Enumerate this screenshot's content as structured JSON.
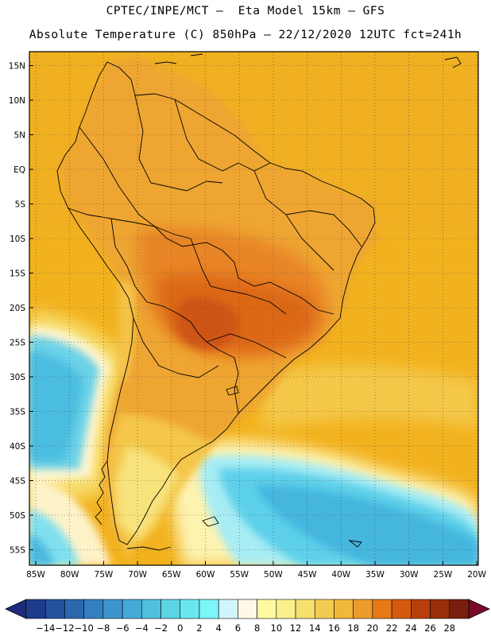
{
  "title_line1": "CPTEC/INPE/MCT –  Eta Model 15km – GFS",
  "title_line2": "Absolute Temperature (C) 850hPa – 22/12/2020 12UTC fct=241h",
  "lat_labels": [
    "15N",
    "10N",
    "5N",
    "EQ",
    "5S",
    "10S",
    "15S",
    "20S",
    "25S",
    "30S",
    "35S",
    "40S",
    "45S",
    "50S",
    "55S"
  ],
  "lon_labels": [
    "85W",
    "80W",
    "75W",
    "70W",
    "65W",
    "60W",
    "55W",
    "50W",
    "45W",
    "40W",
    "35W",
    "30W",
    "25W",
    "20W"
  ],
  "map": {
    "region": "South America",
    "lon_range": [
      -86,
      -19
    ],
    "lat_range": [
      -58,
      17
    ],
    "grid": "dotted",
    "field": "temperature_850hPa"
  },
  "colorbar": {
    "labels": [
      "-14",
      "-12",
      "-10",
      "-8",
      "-6",
      "-4",
      "-2",
      "0",
      "2",
      "4",
      "6",
      "8",
      "10",
      "12",
      "14",
      "16",
      "18",
      "20",
      "22",
      "24",
      "26",
      "28"
    ],
    "colors": [
      "#1e3c8c",
      "#23529f",
      "#2a68b0",
      "#3480c0",
      "#3c95cc",
      "#45aad6",
      "#4fc0de",
      "#5dd4e6",
      "#6ce6ee",
      "#7cf6f8",
      "#d2f4fc",
      "#fff8e6",
      "#fdfaa0",
      "#faf08c",
      "#f6e070",
      "#f2cc52",
      "#f0b83a",
      "#ec9c2c",
      "#e67a18",
      "#d45a10",
      "#b8400a",
      "#9a2e0a",
      "#7a1e10"
    ],
    "low_arrow_color": "#1e2a7a",
    "high_arrow_color": "#7a0a2a"
  }
}
